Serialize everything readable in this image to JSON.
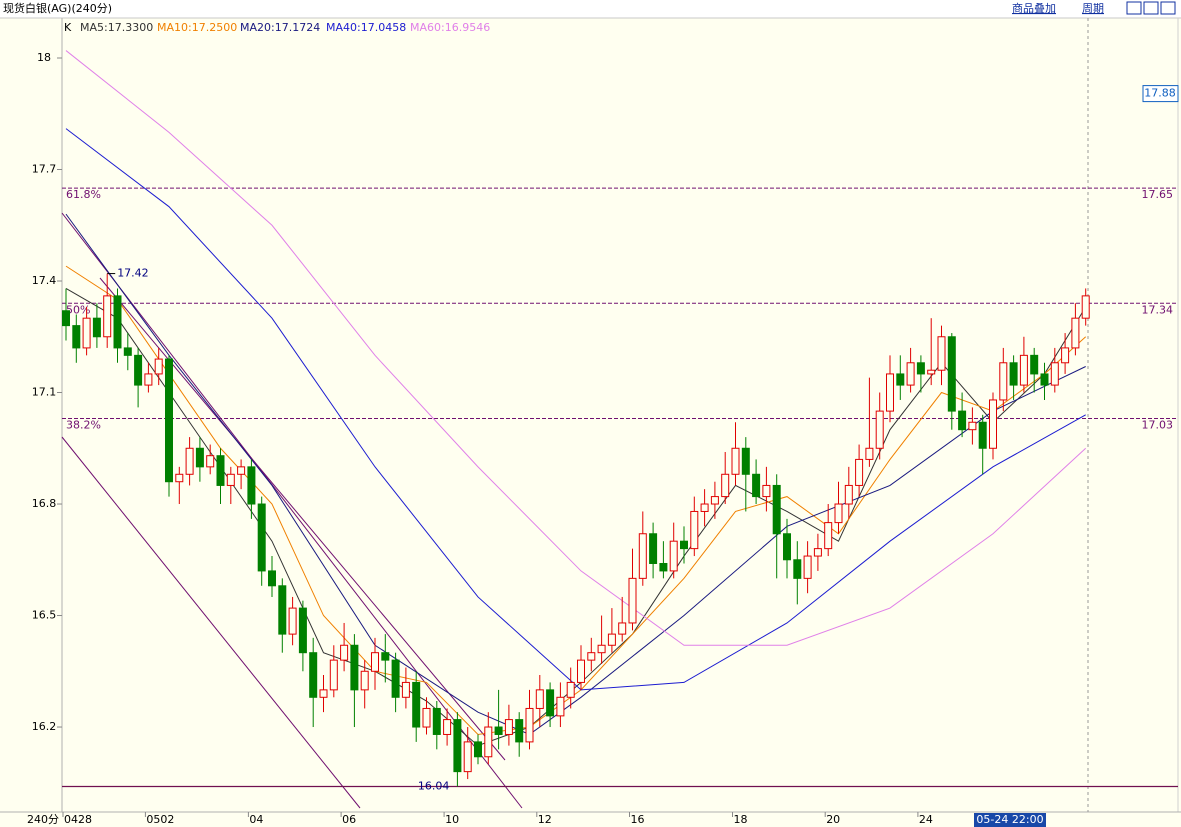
{
  "chart_data": {
    "type": "candlestick",
    "title": "现货白银(AG)(240分)",
    "menu": [
      "商品叠加",
      "周期"
    ],
    "period_label": "240分",
    "series_label": "K",
    "crosshair_label": "05-24 22:00",
    "price_box": 17.88,
    "ylim": [
      16.04,
      18.0
    ],
    "yticks": [
      16.2,
      16.5,
      16.8,
      17.1,
      17.4,
      17.7,
      18.0
    ],
    "xticks": [
      {
        "value": 0,
        "label": "0428"
      },
      {
        "value": 8,
        "label": "0502"
      },
      {
        "value": 18,
        "label": "04"
      },
      {
        "value": 27,
        "label": "06"
      },
      {
        "value": 37,
        "label": "10"
      },
      {
        "value": 46,
        "label": "12"
      },
      {
        "value": 55,
        "label": "16"
      },
      {
        "value": 65,
        "label": "18"
      },
      {
        "value": 74,
        "label": "20"
      },
      {
        "value": 83,
        "label": "24"
      }
    ],
    "up_color": "#e00000",
    "down_color": "#008000",
    "open": [
      17.32,
      17.28,
      17.22,
      17.3,
      17.25,
      17.36,
      17.22,
      17.2,
      17.12,
      17.15,
      17.19,
      16.86,
      16.88,
      16.95,
      16.9,
      16.93,
      16.85,
      16.88,
      16.9,
      16.8,
      16.62,
      16.58,
      16.45,
      16.52,
      16.4,
      16.28,
      16.3,
      16.38,
      16.42,
      16.3,
      16.35,
      16.4,
      16.38,
      16.28,
      16.32,
      16.2,
      16.25,
      16.18,
      16.22,
      16.08,
      16.16,
      16.12,
      16.2,
      16.18,
      16.22,
      16.16,
      16.25,
      16.3,
      16.23,
      16.28,
      16.32,
      16.38,
      16.4,
      16.42,
      16.45,
      16.48,
      16.6,
      16.72,
      16.64,
      16.62,
      16.7,
      16.68,
      16.78,
      16.8,
      16.82,
      16.88,
      16.95,
      16.88,
      16.82,
      16.85,
      16.72,
      16.65,
      16.6,
      16.66,
      16.68,
      16.75,
      16.8,
      16.85,
      16.92,
      16.95,
      17.05,
      17.15,
      17.12,
      17.18,
      17.15,
      17.16,
      17.25,
      17.05,
      17.0,
      17.02,
      16.95,
      17.08,
      17.18,
      17.12,
      17.2,
      17.15,
      17.12,
      17.18,
      17.22,
      17.3
    ],
    "high": [
      17.38,
      17.31,
      17.33,
      17.34,
      17.42,
      17.38,
      17.26,
      17.22,
      17.18,
      17.22,
      17.2,
      16.9,
      16.98,
      16.98,
      16.96,
      16.95,
      16.9,
      16.92,
      16.92,
      16.82,
      16.66,
      16.6,
      16.55,
      16.54,
      16.44,
      16.34,
      16.42,
      16.48,
      16.45,
      16.38,
      16.44,
      16.45,
      16.4,
      16.36,
      16.35,
      16.28,
      16.27,
      16.25,
      16.24,
      16.2,
      16.18,
      16.24,
      16.3,
      16.26,
      16.24,
      16.3,
      16.34,
      16.32,
      16.32,
      16.36,
      16.42,
      16.44,
      16.5,
      16.52,
      16.55,
      16.68,
      16.78,
      16.75,
      16.7,
      16.75,
      16.74,
      16.82,
      16.84,
      16.86,
      16.94,
      17.02,
      16.98,
      16.92,
      16.9,
      16.88,
      16.76,
      16.7,
      16.7,
      16.72,
      16.8,
      16.86,
      16.9,
      16.96,
      17.14,
      17.1,
      17.2,
      17.2,
      17.22,
      17.2,
      17.3,
      17.28,
      17.26,
      17.1,
      17.06,
      17.04,
      17.1,
      17.22,
      17.2,
      17.25,
      17.22,
      17.18,
      17.22,
      17.26,
      17.34,
      17.38
    ],
    "low": [
      17.24,
      17.18,
      17.2,
      17.22,
      17.22,
      17.18,
      17.16,
      17.06,
      17.1,
      17.12,
      16.82,
      16.8,
      16.85,
      16.86,
      16.88,
      16.8,
      16.8,
      16.84,
      16.76,
      16.58,
      16.55,
      16.4,
      16.42,
      16.35,
      16.2,
      16.24,
      16.28,
      16.35,
      16.2,
      16.25,
      16.3,
      16.32,
      16.24,
      16.25,
      16.16,
      16.18,
      16.14,
      16.15,
      16.04,
      16.06,
      16.1,
      16.1,
      16.14,
      16.15,
      16.12,
      16.14,
      16.2,
      16.2,
      16.2,
      16.25,
      16.3,
      16.35,
      16.37,
      16.4,
      16.43,
      16.46,
      16.58,
      16.6,
      16.6,
      16.6,
      16.64,
      16.66,
      16.74,
      16.76,
      16.8,
      16.85,
      16.78,
      16.8,
      16.78,
      16.6,
      16.6,
      16.53,
      16.56,
      16.62,
      16.66,
      16.72,
      16.76,
      16.82,
      16.9,
      16.92,
      17.02,
      17.08,
      17.1,
      17.1,
      17.12,
      17.12,
      17.0,
      16.98,
      16.96,
      16.88,
      16.92,
      17.05,
      17.08,
      17.1,
      17.1,
      17.08,
      17.1,
      17.15,
      17.2,
      17.28
    ],
    "close": [
      17.28,
      17.22,
      17.3,
      17.25,
      17.36,
      17.22,
      17.2,
      17.12,
      17.15,
      17.19,
      16.86,
      16.88,
      16.95,
      16.9,
      16.93,
      16.85,
      16.88,
      16.9,
      16.8,
      16.62,
      16.58,
      16.45,
      16.52,
      16.4,
      16.28,
      16.3,
      16.38,
      16.42,
      16.3,
      16.35,
      16.4,
      16.38,
      16.28,
      16.32,
      16.2,
      16.25,
      16.18,
      16.22,
      16.08,
      16.16,
      16.12,
      16.2,
      16.18,
      16.22,
      16.16,
      16.25,
      16.3,
      16.23,
      16.28,
      16.32,
      16.38,
      16.4,
      16.42,
      16.45,
      16.48,
      16.6,
      16.72,
      16.64,
      16.62,
      16.7,
      16.68,
      16.78,
      16.8,
      16.82,
      16.88,
      16.95,
      16.88,
      16.82,
      16.85,
      16.72,
      16.65,
      16.6,
      16.66,
      16.68,
      16.75,
      16.8,
      16.85,
      16.92,
      16.95,
      17.05,
      17.15,
      17.12,
      17.18,
      17.15,
      17.16,
      17.25,
      17.05,
      17.0,
      17.02,
      16.95,
      17.08,
      17.18,
      17.12,
      17.2,
      17.15,
      17.12,
      17.18,
      17.22,
      17.3,
      17.36
    ],
    "ma_lines": [
      {
        "name": "MA5:17.3300",
        "color": "#333333",
        "x": [
          0,
          5,
          10,
          15,
          20,
          25,
          30,
          35,
          40,
          45,
          50,
          55,
          60,
          65,
          70,
          75,
          80,
          85,
          90,
          95,
          99
        ],
        "values": [
          17.38,
          17.3,
          17.1,
          16.9,
          16.7,
          16.4,
          16.35,
          16.27,
          16.15,
          16.2,
          16.32,
          16.45,
          16.66,
          16.85,
          16.78,
          16.7,
          17.0,
          17.18,
          17.02,
          17.15,
          17.33
        ]
      },
      {
        "name": "MA10:17.2500",
        "color": "#f08000",
        "x": [
          0,
          5,
          10,
          15,
          20,
          25,
          30,
          35,
          40,
          45,
          50,
          55,
          60,
          65,
          70,
          75,
          80,
          85,
          90,
          95,
          99
        ],
        "values": [
          17.44,
          17.35,
          17.15,
          16.95,
          16.8,
          16.5,
          16.35,
          16.32,
          16.18,
          16.2,
          16.3,
          16.45,
          16.6,
          16.78,
          16.82,
          16.72,
          16.92,
          17.1,
          17.05,
          17.15,
          17.25
        ]
      },
      {
        "name": "MA20:17.1724",
        "color": "#1a1a80",
        "x": [
          0,
          10,
          20,
          30,
          40,
          45,
          50,
          60,
          70,
          80,
          90,
          99
        ],
        "values": [
          17.58,
          17.2,
          16.85,
          16.42,
          16.24,
          16.18,
          16.28,
          16.5,
          16.74,
          16.85,
          17.05,
          17.17
        ]
      },
      {
        "name": "MA40:17.0458",
        "color": "#1c1cd0",
        "x": [
          0,
          10,
          20,
          30,
          40,
          50,
          60,
          70,
          80,
          90,
          99
        ],
        "values": [
          17.81,
          17.6,
          17.3,
          16.9,
          16.55,
          16.3,
          16.32,
          16.48,
          16.7,
          16.9,
          17.04
        ]
      },
      {
        "name": "MA60:16.9546",
        "color": "#e080e8",
        "x": [
          0,
          10,
          20,
          30,
          40,
          50,
          60,
          70,
          80,
          90,
          99
        ],
        "values": [
          18.02,
          17.8,
          17.55,
          17.2,
          16.9,
          16.62,
          16.42,
          16.42,
          16.52,
          16.72,
          16.95
        ]
      }
    ],
    "fib_levels": [
      {
        "label": "61.8%",
        "value": 17.65
      },
      {
        "label": "50%",
        "value": 17.34
      },
      {
        "label": "38.2%",
        "value": 17.03
      }
    ],
    "annotations": [
      {
        "label": "17.42",
        "index": 4,
        "value": 17.42
      },
      {
        "label": "16.04",
        "index": 38,
        "value": 16.04
      }
    ]
  }
}
